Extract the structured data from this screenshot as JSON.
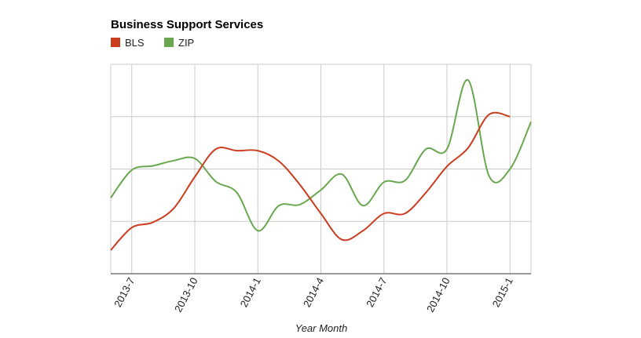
{
  "chart_data": {
    "type": "line",
    "title": "Business Support Services",
    "xlabel": "Year Month",
    "ylabel": "",
    "legend_position": "top-left",
    "grid": true,
    "x": [
      "2013-6",
      "2013-7",
      "2013-8",
      "2013-9",
      "2013-10",
      "2013-11",
      "2013-12",
      "2014-1",
      "2014-2",
      "2014-3",
      "2014-4",
      "2014-5",
      "2014-6",
      "2014-7",
      "2014-8",
      "2014-9",
      "2014-10",
      "2014-11",
      "2014-12",
      "2015-1",
      "2015-2"
    ],
    "tick_labels": [
      "2013-7",
      "2013-10",
      "2014-1",
      "2014-4",
      "2014-7",
      "2014-10",
      "2015-1"
    ],
    "ylim": [
      0,
      4
    ],
    "series": [
      {
        "name": "BLS",
        "color": "#cc3d1f",
        "values": [
          0.45,
          0.88,
          0.98,
          1.25,
          1.85,
          2.38,
          2.35,
          2.35,
          2.15,
          1.7,
          1.15,
          0.65,
          0.82,
          1.15,
          1.15,
          1.55,
          2.05,
          2.4,
          3.04,
          3.0,
          null
        ]
      },
      {
        "name": "ZIP",
        "color": "#6aa84f",
        "values": [
          1.45,
          1.98,
          2.06,
          2.16,
          2.2,
          1.76,
          1.55,
          0.82,
          1.3,
          1.32,
          1.6,
          1.9,
          1.3,
          1.75,
          1.78,
          2.38,
          2.38,
          3.7,
          1.87,
          2.0,
          2.9
        ]
      }
    ]
  }
}
